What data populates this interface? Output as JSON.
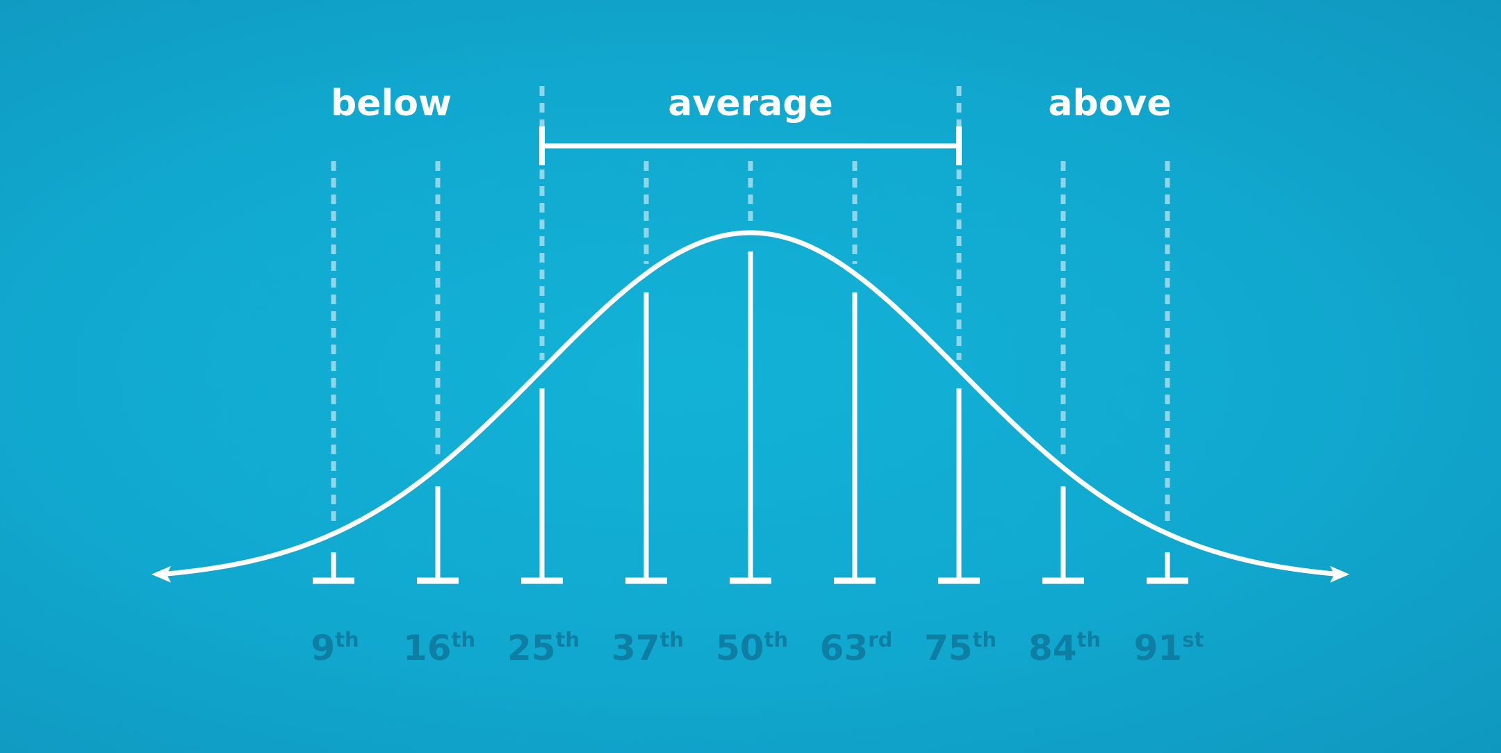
{
  "region_labels": {
    "below": "below",
    "average": "average",
    "above": "above"
  },
  "percentiles": [
    {
      "number": "9",
      "suffix": "th"
    },
    {
      "number": "16",
      "suffix": "th"
    },
    {
      "number": "25",
      "suffix": "th"
    },
    {
      "number": "37",
      "suffix": "th"
    },
    {
      "number": "50",
      "suffix": "th"
    },
    {
      "number": "63",
      "suffix": "rd"
    },
    {
      "number": "75",
      "suffix": "th"
    },
    {
      "number": "84",
      "suffix": "th"
    },
    {
      "number": "91",
      "suffix": "st"
    }
  ],
  "colors": {
    "background": "#11a8cf",
    "foreground": "#ffffff",
    "percentile_text": "#0e7ea3",
    "dashed_line": "#8fd6ea"
  }
}
